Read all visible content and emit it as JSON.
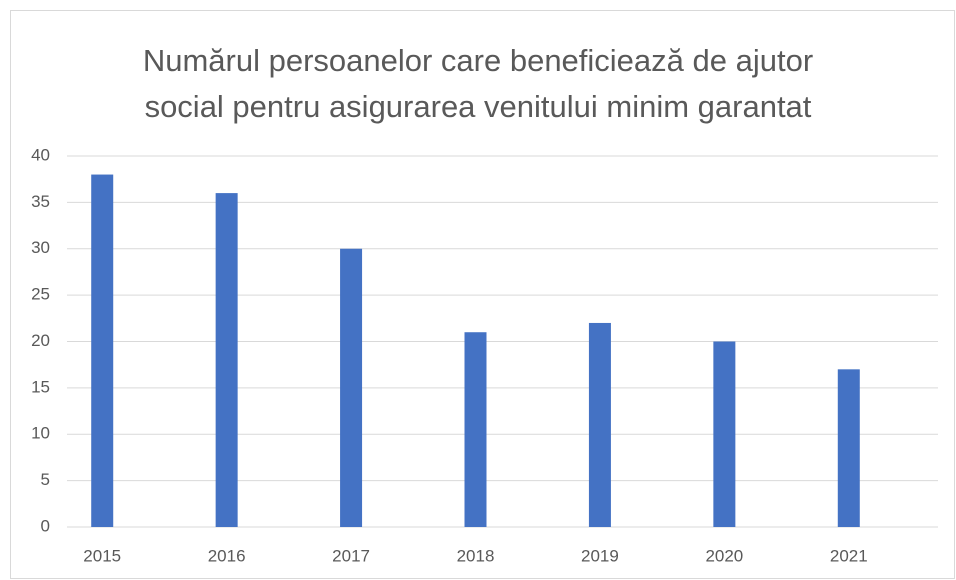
{
  "chart_data": {
    "type": "bar",
    "title": "Numărul persoanelor care beneficiează de ajutor social pentru asigurarea venitului minim garantat",
    "categories": [
      "2015",
      "2016",
      "2017",
      "2018",
      "2019",
      "2020",
      "2021"
    ],
    "values": [
      38,
      36,
      30,
      21,
      22,
      20,
      17
    ],
    "color": "#4472c4",
    "ylim": [
      0,
      40
    ],
    "yticks": [
      0,
      5,
      10,
      15,
      20,
      25,
      30,
      35,
      40
    ],
    "grid": true
  }
}
